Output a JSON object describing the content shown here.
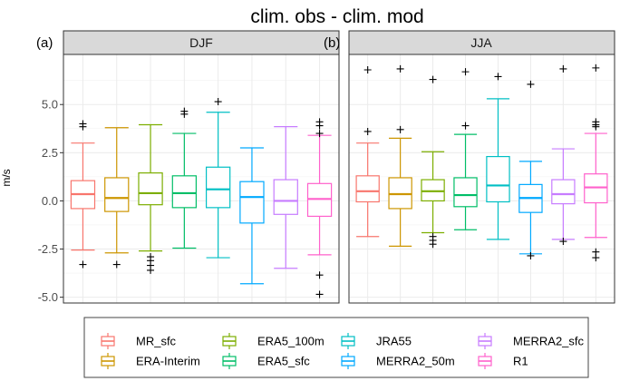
{
  "figure": {
    "title": "clim. obs - clim. mod",
    "ylabel": "m/s"
  },
  "legend": {
    "entries": [
      {
        "name": "MR_sfc",
        "color": "#F8766D"
      },
      {
        "name": "ERA-Interim",
        "color": "#CD9600"
      },
      {
        "name": "ERA5_100m",
        "color": "#7CAE00"
      },
      {
        "name": "ERA5_sfc",
        "color": "#00BE67"
      },
      {
        "name": "JRA55",
        "color": "#00BFC4"
      },
      {
        "name": "MERRA2_50m",
        "color": "#00A9FF"
      },
      {
        "name": "MERRA2_sfc",
        "color": "#C77CFF"
      },
      {
        "name": "R1",
        "color": "#FF61CC"
      }
    ]
  },
  "chart_data": [
    {
      "type": "boxplot",
      "panel_label": "(a)",
      "strip_label": "DJF",
      "ylabel": "m/s",
      "ylim": [
        -5.3,
        7.6
      ],
      "yticks": [
        -5.0,
        -2.5,
        0.0,
        2.5,
        5.0
      ],
      "ytick_labels": [
        "-5.0",
        "-2.5",
        "0.0",
        "2.5",
        "5.0"
      ],
      "grid": true,
      "legend": "bottom",
      "series": [
        {
          "name": "MR_sfc",
          "whisker_low": -2.55,
          "q1": -0.4,
          "median": 0.35,
          "q3": 1.05,
          "whisker_high": 3.0,
          "outliers": [
            3.85,
            4.0,
            -3.3
          ]
        },
        {
          "name": "ERA-Interim",
          "whisker_low": -2.7,
          "q1": -0.55,
          "median": 0.15,
          "q3": 1.2,
          "whisker_high": 3.8,
          "outliers": [
            -3.3
          ]
        },
        {
          "name": "ERA5_100m",
          "whisker_low": -2.6,
          "q1": -0.2,
          "median": 0.4,
          "q3": 1.45,
          "whisker_high": 3.95,
          "outliers": [
            -2.9,
            -3.1,
            -3.35,
            -3.6
          ]
        },
        {
          "name": "ERA5_sfc",
          "whisker_low": -2.45,
          "q1": -0.35,
          "median": 0.4,
          "q3": 1.3,
          "whisker_high": 3.5,
          "outliers": [
            4.5,
            4.65
          ]
        },
        {
          "name": "JRA55",
          "whisker_low": -2.95,
          "q1": -0.35,
          "median": 0.6,
          "q3": 1.75,
          "whisker_high": 4.6,
          "outliers": [
            5.15
          ]
        },
        {
          "name": "MERRA2_50m",
          "whisker_low": -4.3,
          "q1": -1.15,
          "median": 0.2,
          "q3": 1.0,
          "whisker_high": 2.75,
          "outliers": []
        },
        {
          "name": "MERRA2_sfc",
          "whisker_low": -3.5,
          "q1": -0.7,
          "median": 0.0,
          "q3": 1.1,
          "whisker_high": 3.85,
          "outliers": []
        },
        {
          "name": "R1",
          "whisker_low": -2.8,
          "q1": -0.8,
          "median": 0.1,
          "q3": 0.9,
          "whisker_high": 3.4,
          "outliers": [
            4.1,
            3.9,
            3.5,
            -3.85,
            -4.85
          ]
        }
      ]
    },
    {
      "type": "boxplot",
      "panel_label": "(b)",
      "strip_label": "JJA",
      "ylabel": "m/s",
      "ylim": [
        -5.3,
        7.6
      ],
      "yticks": [
        -5.0,
        -2.5,
        0.0,
        2.5,
        5.0
      ],
      "ytick_labels": [
        "-5.0",
        "-2.5",
        "0.0",
        "2.5",
        "5.0"
      ],
      "grid": true,
      "legend": "bottom",
      "series": [
        {
          "name": "MR_sfc",
          "whisker_low": -1.85,
          "q1": -0.05,
          "median": 0.5,
          "q3": 1.3,
          "whisker_high": 3.0,
          "outliers": [
            3.6,
            6.8
          ]
        },
        {
          "name": "ERA-Interim",
          "whisker_low": -2.35,
          "q1": -0.4,
          "median": 0.35,
          "q3": 1.2,
          "whisker_high": 3.25,
          "outliers": [
            3.7,
            6.85
          ]
        },
        {
          "name": "ERA5_100m",
          "whisker_low": -1.65,
          "q1": 0.0,
          "median": 0.5,
          "q3": 1.1,
          "whisker_high": 2.55,
          "outliers": [
            -1.85,
            -2.05,
            -2.25,
            6.3
          ]
        },
        {
          "name": "ERA5_sfc",
          "whisker_low": -1.5,
          "q1": -0.3,
          "median": 0.3,
          "q3": 1.2,
          "whisker_high": 3.45,
          "outliers": [
            3.9,
            6.7
          ]
        },
        {
          "name": "JRA55",
          "whisker_low": -2.0,
          "q1": -0.05,
          "median": 0.8,
          "q3": 2.3,
          "whisker_high": 5.3,
          "outliers": [
            6.45
          ]
        },
        {
          "name": "MERRA2_50m",
          "whisker_low": -2.75,
          "q1": -0.6,
          "median": 0.15,
          "q3": 0.85,
          "whisker_high": 2.05,
          "outliers": [
            -2.85,
            6.05
          ]
        },
        {
          "name": "MERRA2_sfc",
          "whisker_low": -2.0,
          "q1": -0.15,
          "median": 0.35,
          "q3": 1.1,
          "whisker_high": 2.7,
          "outliers": [
            -2.1,
            6.85
          ]
        },
        {
          "name": "R1",
          "whisker_low": -1.9,
          "q1": -0.1,
          "median": 0.7,
          "q3": 1.4,
          "whisker_high": 3.5,
          "outliers": [
            3.85,
            3.95,
            4.1,
            -2.65,
            -2.95,
            6.9
          ]
        }
      ]
    }
  ]
}
